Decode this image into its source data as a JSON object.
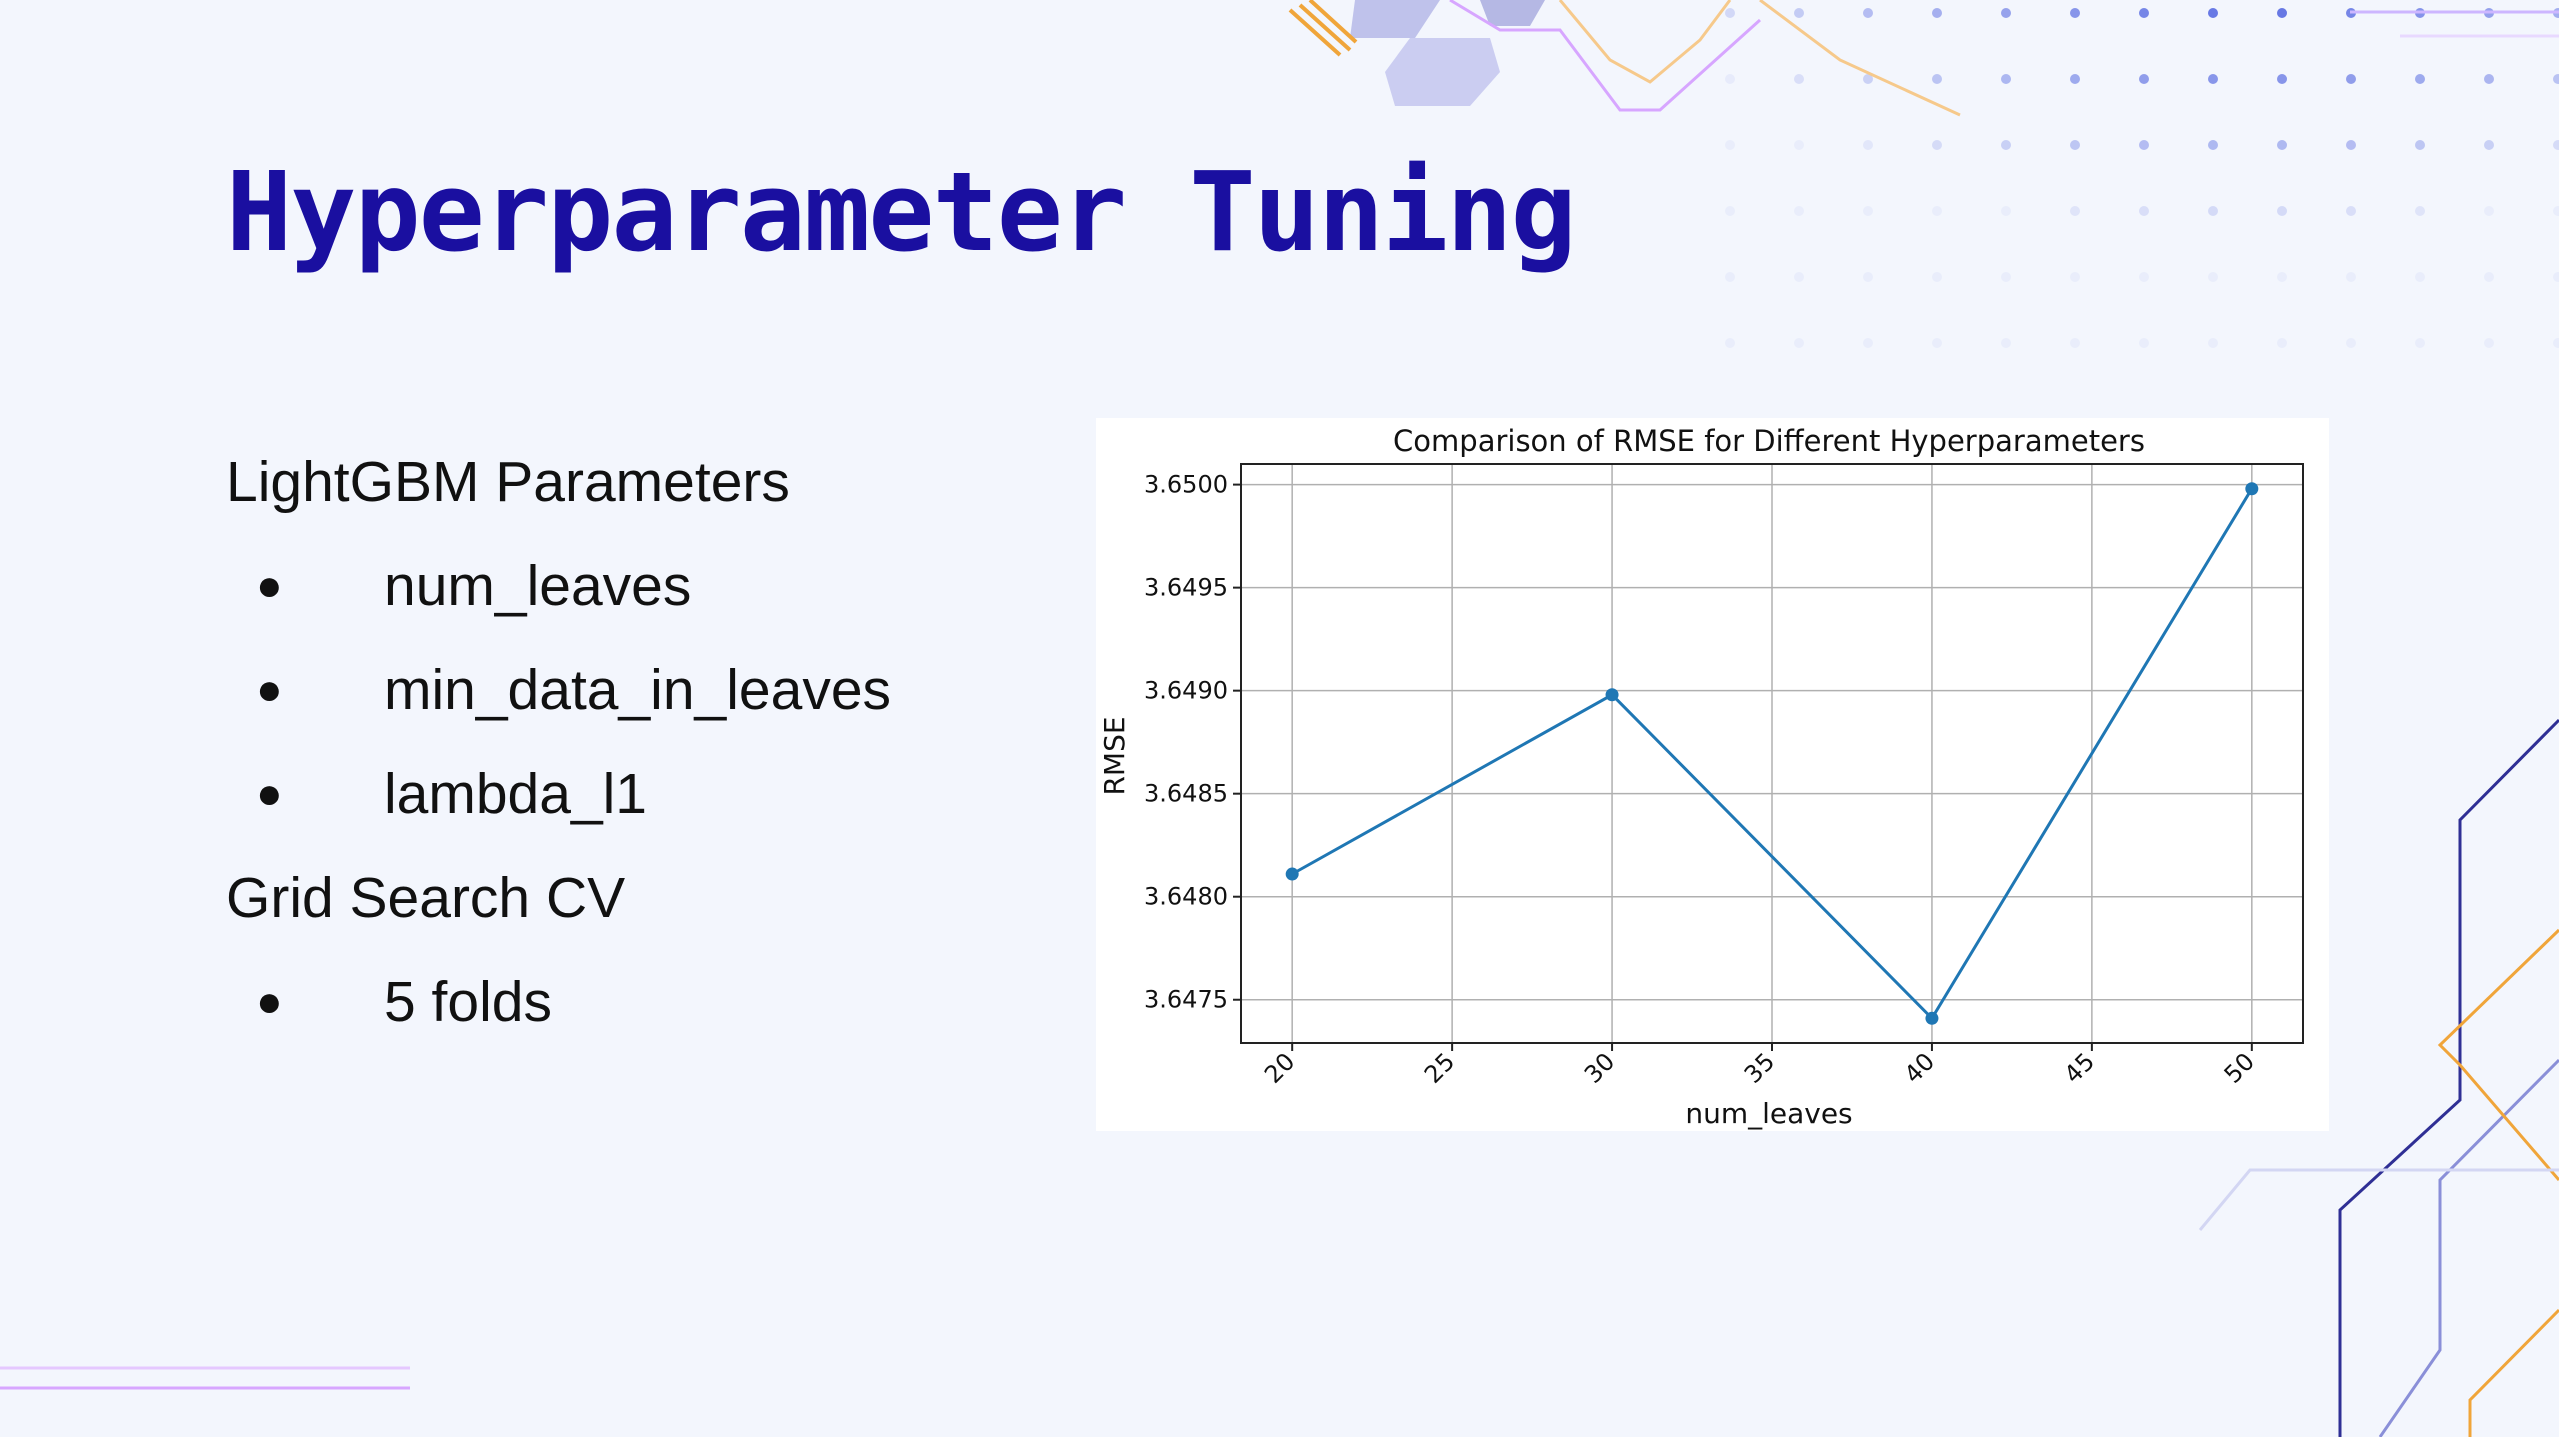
{
  "slide": {
    "title": "Hyperparameter Tuning",
    "bullets": [
      {
        "level": 0,
        "text": "LightGBM Parameters"
      },
      {
        "level": 1,
        "text": "num_leaves"
      },
      {
        "level": 1,
        "text": "min_data_in_leaves"
      },
      {
        "level": 1,
        "text": "lambda_l1"
      },
      {
        "level": 0,
        "text": "Grid Search CV"
      },
      {
        "level": 1,
        "text": "5 folds"
      }
    ],
    "bullet_glyph": "●"
  },
  "colors": {
    "title": "#1a0fa0",
    "series": "#1f77b4",
    "background": "#f3f6fd"
  },
  "chart_data": {
    "type": "line",
    "title": "Comparison of RMSE for Different Hyperparameters",
    "xlabel": "num_leaves",
    "ylabel": "RMSE",
    "x": [
      20,
      30,
      40,
      50
    ],
    "series": [
      {
        "values": [
          3.64811,
          3.64898,
          3.64741,
          3.64998
        ]
      }
    ],
    "xlim": [
      18.4,
      51.6
    ],
    "ylim": [
      3.64729,
      3.6501
    ],
    "xticks": [
      20,
      25,
      30,
      35,
      40,
      45,
      50
    ],
    "xtick_labels": [
      "20",
      "25",
      "30",
      "35",
      "40",
      "45",
      "50"
    ],
    "yticks": [
      3.6475,
      3.648,
      3.6485,
      3.649,
      3.6495,
      3.65
    ],
    "ytick_labels": [
      "3.6475",
      "3.6480",
      "3.6485",
      "3.6490",
      "3.6495",
      "3.6500"
    ],
    "grid": true,
    "marker": "circle"
  }
}
